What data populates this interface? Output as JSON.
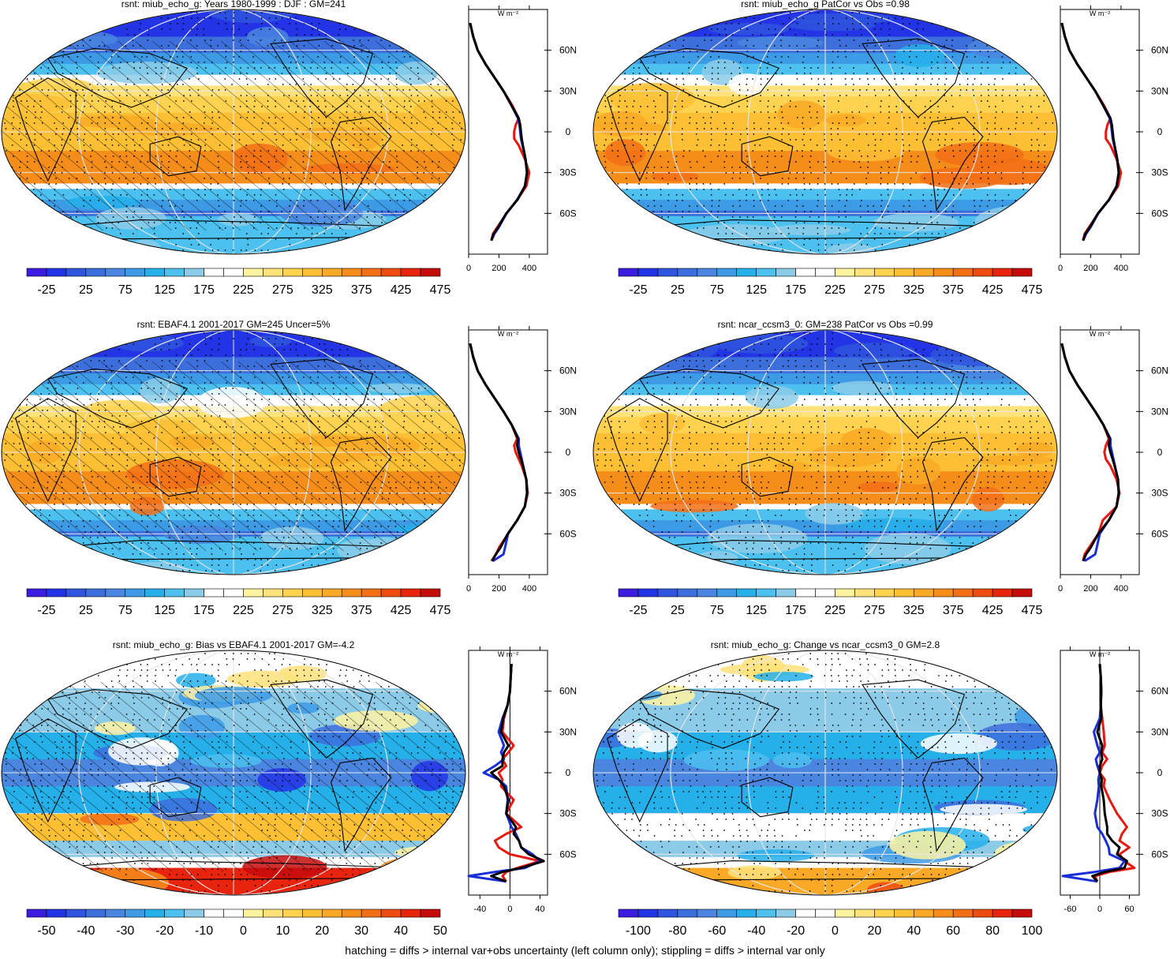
{
  "footnote": "hatching = diffs > internal var+obs uncertainty (left column only); stippling = diffs > internal var only",
  "profile_units": "W m⁻²",
  "lat_tick_labels": [
    "60N",
    "30N",
    "0",
    "30S",
    "60S"
  ],
  "colormaps": {
    "abs": [
      "#3a1de0",
      "#2234e6",
      "#2f55de",
      "#3d6fdc",
      "#4a86e0",
      "#3d9be6",
      "#25b0ea",
      "#4cc0ee",
      "#8ccbe8",
      "#ffffff",
      "#ffffff",
      "#fff3a0",
      "#ffe27a",
      "#ffd250",
      "#fdbf34",
      "#f9a925",
      "#f58d1b",
      "#f26f15",
      "#ef4c12",
      "#e8240f",
      "#c60b0b"
    ],
    "diff": [
      "#3a1de0",
      "#2234e6",
      "#2f55de",
      "#3d6fdc",
      "#4a86e0",
      "#3d9be6",
      "#25b0ea",
      "#4cc0ee",
      "#8ccbe8",
      "#ffffff",
      "#ffffff",
      "#fff3a0",
      "#ffe27a",
      "#ffd250",
      "#fdbf34",
      "#f9a925",
      "#f58d1b",
      "#f26f15",
      "#ef4c12",
      "#e8240f",
      "#c60b0b"
    ]
  },
  "chart_data": [
    {
      "type": "heatmap",
      "title": "rsnt: miub_echo_g: Years 1980-1999 : DJF : GM=241",
      "colorbar_labels": [
        "-25",
        "25",
        "75",
        "125",
        "175",
        "225",
        "275",
        "325",
        "375",
        "425",
        "475"
      ],
      "colormap": "abs",
      "hatching": true,
      "stippling": true,
      "zonal_profile": {
        "xticks": [
          "0",
          "200",
          "400"
        ],
        "xlim": [
          0,
          520
        ],
        "lat": [
          80,
          70,
          60,
          50,
          40,
          30,
          20,
          10,
          5,
          0,
          -5,
          -10,
          -20,
          -30,
          -40,
          -50,
          -60,
          -70,
          -75,
          -80
        ],
        "series": [
          {
            "color": "#e8170f",
            "values": [
              10,
              30,
              60,
              110,
              170,
              230,
              285,
              330,
              310,
              300,
              300,
              330,
              370,
              400,
              380,
              320,
              250,
              190,
              160,
              150
            ]
          },
          {
            "color": "#1a2fd8",
            "values": [
              10,
              30,
              60,
              110,
              170,
              230,
              280,
              325,
              335,
              340,
              345,
              355,
              375,
              385,
              370,
              320,
              250,
              200,
              170,
              150
            ]
          },
          {
            "color": "#000000",
            "values": [
              10,
              30,
              60,
              110,
              170,
              230,
              280,
              330,
              340,
              345,
              350,
              358,
              375,
              385,
              372,
              322,
              248,
              195,
              165,
              150
            ]
          }
        ]
      }
    },
    {
      "type": "heatmap",
      "title": "rsnt: miub_echo_g PatCor vs Obs =0.98",
      "colorbar_labels": [
        "-25",
        "25",
        "75",
        "125",
        "175",
        "225",
        "275",
        "325",
        "375",
        "425",
        "475"
      ],
      "colormap": "abs",
      "hatching": false,
      "stippling": true,
      "zonal_profile": {
        "xticks": [
          "0",
          "200",
          "400"
        ],
        "xlim": [
          0,
          520
        ],
        "lat": [
          80,
          70,
          60,
          50,
          40,
          30,
          20,
          10,
          5,
          0,
          -5,
          -10,
          -20,
          -30,
          -40,
          -50,
          -60,
          -70,
          -75,
          -80
        ],
        "series": [
          {
            "color": "#e8170f",
            "values": [
              10,
              30,
              60,
              110,
              170,
              230,
              285,
              330,
              310,
              300,
              300,
              330,
              370,
              400,
              380,
              320,
              250,
              190,
              160,
              150
            ]
          },
          {
            "color": "#1a2fd8",
            "values": [
              10,
              30,
              60,
              110,
              170,
              230,
              280,
              325,
              335,
              340,
              345,
              355,
              375,
              385,
              370,
              320,
              250,
              200,
              170,
              150
            ]
          },
          {
            "color": "#000000",
            "values": [
              10,
              30,
              60,
              110,
              170,
              230,
              280,
              330,
              340,
              345,
              350,
              358,
              375,
              385,
              372,
              322,
              248,
              195,
              165,
              150
            ]
          }
        ]
      }
    },
    {
      "type": "heatmap",
      "title": "rsnt: EBAF4.1 2001-2017 GM=245 Uncer=5%",
      "colorbar_labels": [
        "-25",
        "25",
        "75",
        "125",
        "175",
        "225",
        "275",
        "325",
        "375",
        "425",
        "475"
      ],
      "colormap": "abs",
      "hatching": true,
      "stippling": true,
      "zonal_profile": {
        "xticks": [
          "0",
          "200",
          "400"
        ],
        "xlim": [
          0,
          520
        ],
        "lat": [
          80,
          70,
          60,
          50,
          40,
          30,
          20,
          10,
          5,
          0,
          -5,
          -10,
          -20,
          -30,
          -40,
          -50,
          -60,
          -70,
          -75,
          -80
        ],
        "series": [
          {
            "color": "#e8170f",
            "values": [
              10,
              30,
              60,
              110,
              170,
              230,
              285,
              320,
              300,
              310,
              330,
              350,
              380,
              390,
              370,
              320,
              260,
              200,
              180,
              150
            ]
          },
          {
            "color": "#1a2fd8",
            "values": [
              10,
              30,
              60,
              110,
              170,
              230,
              285,
              330,
              330,
              340,
              350,
              360,
              380,
              385,
              370,
              320,
              260,
              240,
              230,
              160
            ]
          },
          {
            "color": "#000000",
            "values": [
              10,
              30,
              60,
              110,
              170,
              230,
              285,
              325,
              320,
              330,
              345,
              358,
              380,
              385,
              370,
              320,
              258,
              210,
              180,
              155
            ]
          }
        ]
      }
    },
    {
      "type": "heatmap",
      "title": "rsnt: ncar_ccsm3_0: GM=238 PatCor vs Obs =0.99",
      "colorbar_labels": [
        "-25",
        "25",
        "75",
        "125",
        "175",
        "225",
        "275",
        "325",
        "375",
        "425",
        "475"
      ],
      "colormap": "abs",
      "hatching": false,
      "stippling": true,
      "zonal_profile": {
        "xticks": [
          "0",
          "200",
          "400"
        ],
        "xlim": [
          0,
          520
        ],
        "lat": [
          80,
          70,
          60,
          50,
          40,
          30,
          20,
          10,
          5,
          0,
          -5,
          -10,
          -20,
          -30,
          -40,
          -50,
          -60,
          -70,
          -75,
          -80
        ],
        "series": [
          {
            "color": "#e8170f",
            "values": [
              10,
              30,
              60,
              110,
              170,
              230,
              285,
              320,
              300,
              290,
              300,
              330,
              370,
              390,
              370,
              280,
              250,
              190,
              160,
              150
            ]
          },
          {
            "color": "#1a2fd8",
            "values": [
              10,
              30,
              60,
              110,
              170,
              230,
              285,
              330,
              330,
              340,
              350,
              360,
              380,
              385,
              370,
              320,
              260,
              240,
              230,
              160
            ]
          },
          {
            "color": "#000000",
            "values": [
              10,
              30,
              60,
              110,
              170,
              230,
              285,
              325,
              320,
              330,
              345,
              358,
              380,
              385,
              370,
              320,
              250,
              200,
              170,
              150
            ]
          }
        ]
      }
    },
    {
      "type": "heatmap",
      "title": "rsnt: miub_echo_g: Bias vs EBAF4.1 2001-2017 GM=-4.2",
      "colorbar_labels": [
        "-50",
        "-40",
        "-30",
        "-20",
        "-10",
        "0",
        "10",
        "20",
        "30",
        "40",
        "50"
      ],
      "colormap": "diff",
      "hatching": true,
      "stippling": true,
      "zonal_profile": {
        "xticks": [
          "-40",
          "0",
          "40"
        ],
        "xlim": [
          -55,
          50
        ],
        "lat": [
          80,
          70,
          60,
          50,
          40,
          30,
          20,
          15,
          10,
          5,
          0,
          -5,
          -10,
          -20,
          -30,
          -40,
          -45,
          -50,
          -55,
          -60,
          -65,
          -70,
          -73,
          -76,
          -80
        ],
        "series": [
          {
            "color": "#e8170f",
            "values": [
              2,
              1,
              0,
              -3,
              -8,
              -10,
              5,
              -2,
              -10,
              -5,
              -15,
              -10,
              -12,
              5,
              -5,
              15,
              -5,
              -20,
              -15,
              0,
              40,
              10,
              -5,
              -10,
              -5
            ]
          },
          {
            "color": "#1a2fd8",
            "values": [
              2,
              1,
              0,
              -3,
              -10,
              -15,
              -8,
              -12,
              -8,
              -20,
              -35,
              -15,
              -5,
              -3,
              -5,
              2,
              8,
              12,
              15,
              30,
              40,
              20,
              -20,
              -60,
              -5
            ]
          },
          {
            "color": "#000000",
            "values": [
              2,
              1,
              0,
              -3,
              -9,
              -12,
              -2,
              -8,
              -10,
              -10,
              -25,
              -15,
              -8,
              -2,
              -5,
              8,
              5,
              12,
              15,
              25,
              45,
              15,
              -10,
              -25,
              -5
            ]
          }
        ]
      }
    },
    {
      "type": "heatmap",
      "title": "rsnt: miub_echo_g: Change vs ncar_ccsm3_0 GM=2.8",
      "colorbar_labels": [
        "-100",
        "-80",
        "-60",
        "-40",
        "-20",
        "0",
        "20",
        "40",
        "60",
        "80",
        "100"
      ],
      "colormap": "diff",
      "hatching": false,
      "stippling": true,
      "zonal_profile": {
        "xticks": [
          "-60",
          "0",
          "60"
        ],
        "xlim": [
          -80,
          80
        ],
        "lat": [
          80,
          70,
          60,
          50,
          40,
          30,
          20,
          15,
          10,
          5,
          0,
          -5,
          -10,
          -20,
          -30,
          -40,
          -45,
          -50,
          -55,
          -60,
          -65,
          -70,
          -73,
          -76,
          -80
        ],
        "series": [
          {
            "color": "#e8170f",
            "values": [
              0,
              2,
              3,
              2,
              5,
              8,
              10,
              5,
              15,
              5,
              0,
              10,
              8,
              20,
              35,
              55,
              45,
              40,
              60,
              40,
              50,
              70,
              20,
              -10,
              -5
            ]
          },
          {
            "color": "#1a2fd8",
            "values": [
              0,
              2,
              3,
              2,
              0,
              -12,
              -5,
              0,
              -8,
              -5,
              0,
              -3,
              -2,
              -5,
              -10,
              -5,
              5,
              12,
              18,
              20,
              50,
              40,
              -10,
              -75,
              -5
            ]
          },
          {
            "color": "#000000",
            "values": [
              0,
              2,
              3,
              2,
              3,
              -5,
              5,
              3,
              5,
              0,
              0,
              4,
              3,
              8,
              10,
              15,
              15,
              25,
              40,
              35,
              55,
              50,
              10,
              -15,
              -5
            ]
          }
        ]
      }
    }
  ]
}
